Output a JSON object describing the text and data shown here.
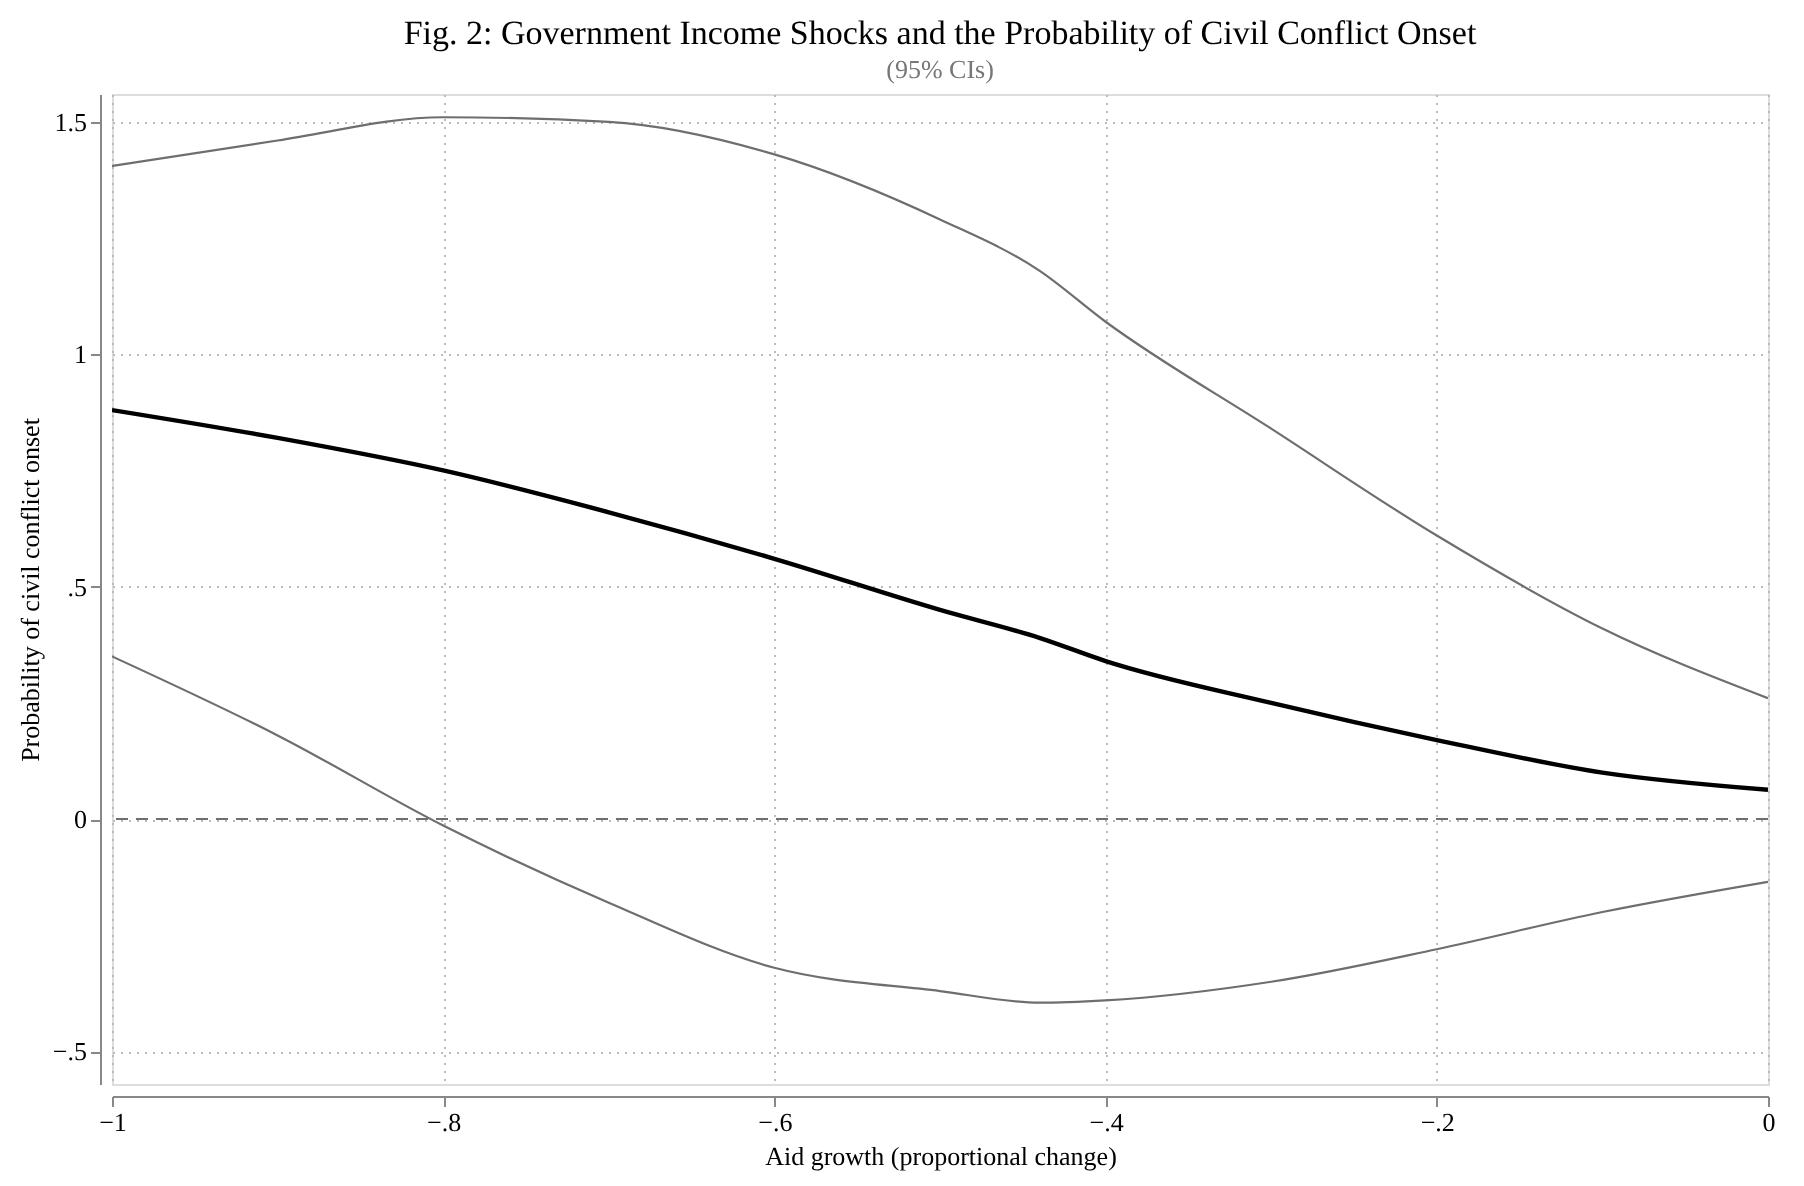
{
  "chart_data": {
    "type": "line",
    "title": "Fig. 2: Government Income Shocks and the Probability of Civil Conflict Onset",
    "subtitle": "(95% CIs)",
    "xlabel": "Aid growth (proportional change)",
    "ylabel": "Probability of civil conflict onset",
    "x": [
      -1,
      -0.9,
      -0.8,
      -0.7,
      -0.6,
      -0.5,
      -0.44,
      -0.4,
      -0.3,
      -0.2,
      -0.1,
      0
    ],
    "series": [
      {
        "color": "#6e6e6e",
        "values": [
          1.405,
          1.46,
          1.51,
          1.5,
          1.43,
          1.29,
          1.18,
          1.07,
          0.84,
          0.61,
          0.41,
          0.26
        ]
      },
      {
        "color": "#000000",
        "values": [
          0.88,
          0.82,
          0.75,
          0.66,
          0.56,
          0.45,
          0.39,
          0.34,
          0.25,
          0.17,
          0.1,
          0.063
        ]
      },
      {
        "color": "#6e6e6e",
        "values": [
          0.35,
          0.18,
          -0.014,
          -0.18,
          -0.32,
          -0.37,
          -0.395,
          -0.39,
          -0.35,
          -0.28,
          -0.2,
          -0.135
        ]
      }
    ],
    "xlim": [
      -1,
      0
    ],
    "ylim": [
      -0.57,
      1.56
    ],
    "xticks": [
      {
        "value": -1,
        "label": "−1"
      },
      {
        "value": -0.8,
        "label": "−.8"
      },
      {
        "value": -0.6,
        "label": "−.6"
      },
      {
        "value": -0.4,
        "label": "−.4"
      },
      {
        "value": -0.2,
        "label": "−.2"
      },
      0
    ],
    "yticks": [
      {
        "value": -0.5,
        "label": "−.5"
      },
      0,
      {
        "value": 0.5,
        "label": ".5"
      },
      1,
      1.5
    ],
    "ref_lines": [
      {
        "axis": "y",
        "value": 0,
        "color": "#6e6e6e",
        "line_style": "dashed"
      }
    ],
    "grid": true,
    "line_style": "solid",
    "marker": "none"
  }
}
